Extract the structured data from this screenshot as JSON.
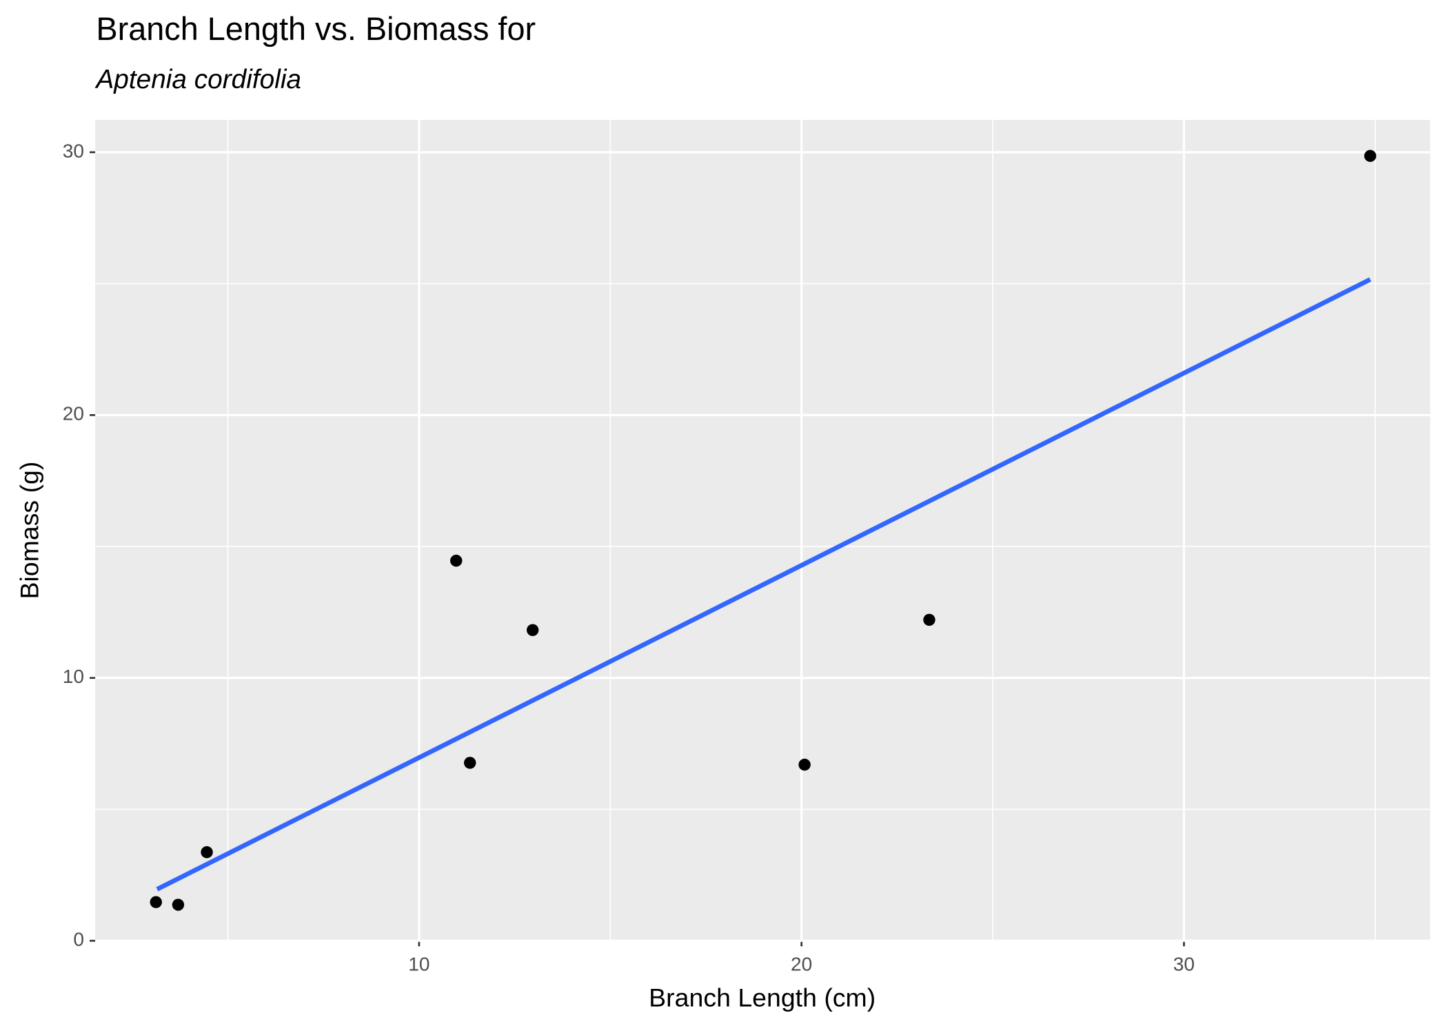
{
  "chart_data": {
    "type": "scatter",
    "title": "Branch Length vs. Biomass for",
    "subtitle": "Aptenia cordifolia",
    "x_label": "Branch Length (cm)",
    "y_label": "Biomass (g)",
    "x": [
      3.12,
      3.7,
      4.45,
      10.97,
      11.33,
      12.97,
      20.08,
      23.34,
      34.87
    ],
    "values": [
      1.47,
      1.37,
      3.37,
      14.46,
      6.77,
      11.82,
      6.7,
      12.21,
      29.86
    ],
    "color": "#000000",
    "trend": {
      "x": [
        3.15,
        34.87
      ],
      "values": [
        1.96,
        25.16
      ],
      "color": "#3366ff"
    },
    "xlim": [
      1.53,
      36.44
    ],
    "ylim": [
      0,
      31.23
    ],
    "xticks": [
      10,
      20,
      30
    ],
    "yticks": [
      0,
      10,
      20,
      30
    ],
    "xminor": [
      5,
      15,
      25,
      35
    ],
    "yminor": [
      5,
      15,
      25
    ],
    "grid": true
  }
}
